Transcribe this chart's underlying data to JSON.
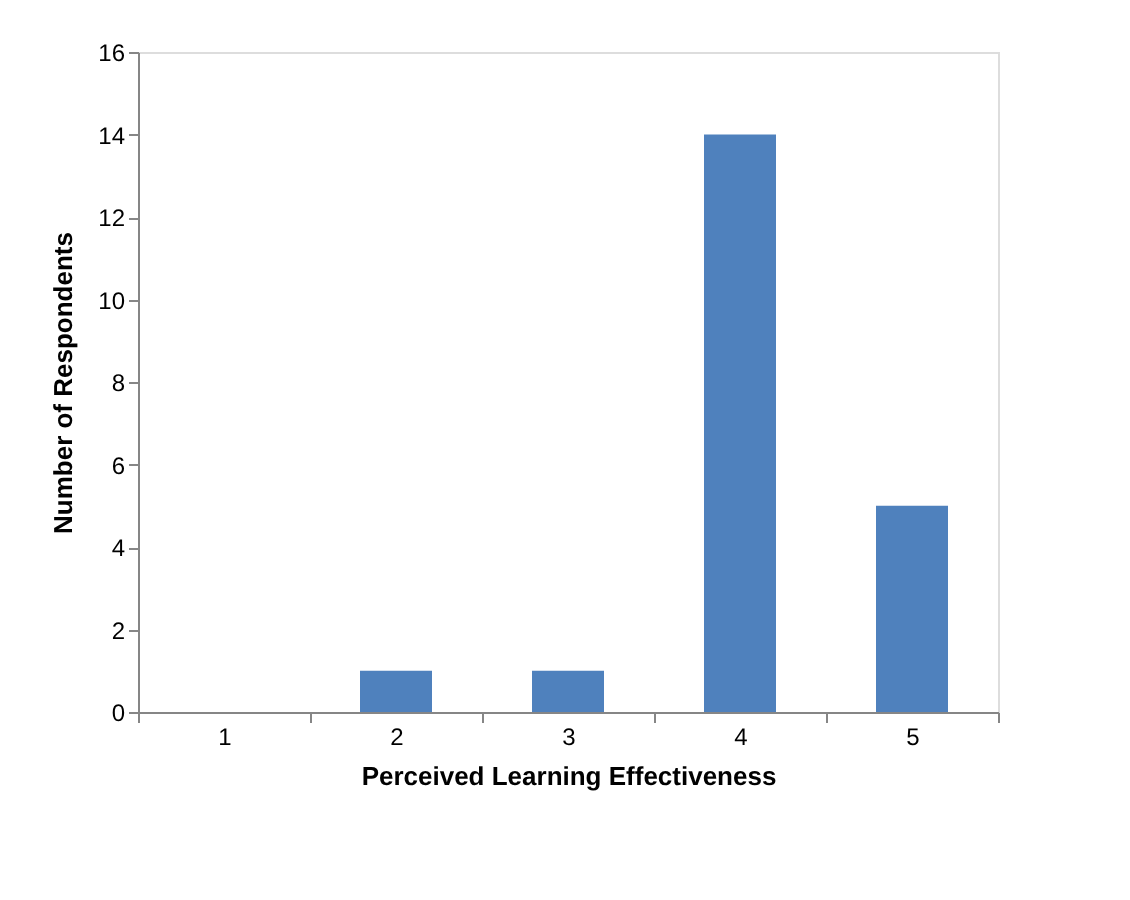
{
  "chart_data": {
    "type": "bar",
    "xlabel": "Perceived Learning Effectiveness",
    "ylabel": "Number of Respondents",
    "categories": [
      "1",
      "2",
      "3",
      "4",
      "5"
    ],
    "series": [
      {
        "color": "#4f81bd",
        "values": [
          0,
          1,
          1,
          14,
          5
        ]
      }
    ],
    "ylim": [
      0,
      16
    ],
    "yticks": [
      0,
      2,
      4,
      6,
      8,
      10,
      12,
      14,
      16
    ],
    "grid": false
  }
}
